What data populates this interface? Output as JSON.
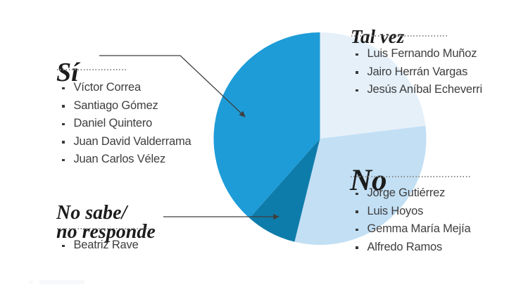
{
  "chart_data": {
    "type": "pie",
    "title": "",
    "start_angle_deg": 0,
    "direction": "clockwise",
    "total_names": 13,
    "legend_position": "around",
    "slices": [
      {
        "label": "Tal vez",
        "count": 3,
        "percent": 23.1,
        "color": "#E5F0F9",
        "names": [
          "Luis Fernando Muñoz",
          "Jairo Herrán Vargas",
          "Jesús Aníbal Echeverri"
        ]
      },
      {
        "label": "No",
        "count": 4,
        "percent": 30.8,
        "color": "#C2DFF4",
        "names": [
          "Jorge Gutiérrez",
          "Luis Hoyos",
          "Gemma María Mejía",
          "Alfredo Ramos"
        ]
      },
      {
        "label": "No sabe/no responde",
        "count": 1,
        "percent": 7.7,
        "color": "#0E7CAB",
        "names": [
          "Beatriz Rave"
        ]
      },
      {
        "label": "Sí",
        "count": 5,
        "percent": 38.5,
        "color": "#1E9CD8",
        "names": [
          "Víctor Correa",
          "Santiago Gómez",
          "Daniel Quintero",
          "Juan David Valderrama",
          "Juan Carlos Vélez"
        ]
      }
    ]
  },
  "labels": {
    "no_sabe_line1": "No sabe/",
    "no_sabe_line2": "no responde"
  },
  "colors": {
    "leader_line": "#3f3f3f",
    "heading_text": "#1c1c1c",
    "list_text": "#3e3e3e",
    "dotted_rule": "#8c8c8c"
  }
}
